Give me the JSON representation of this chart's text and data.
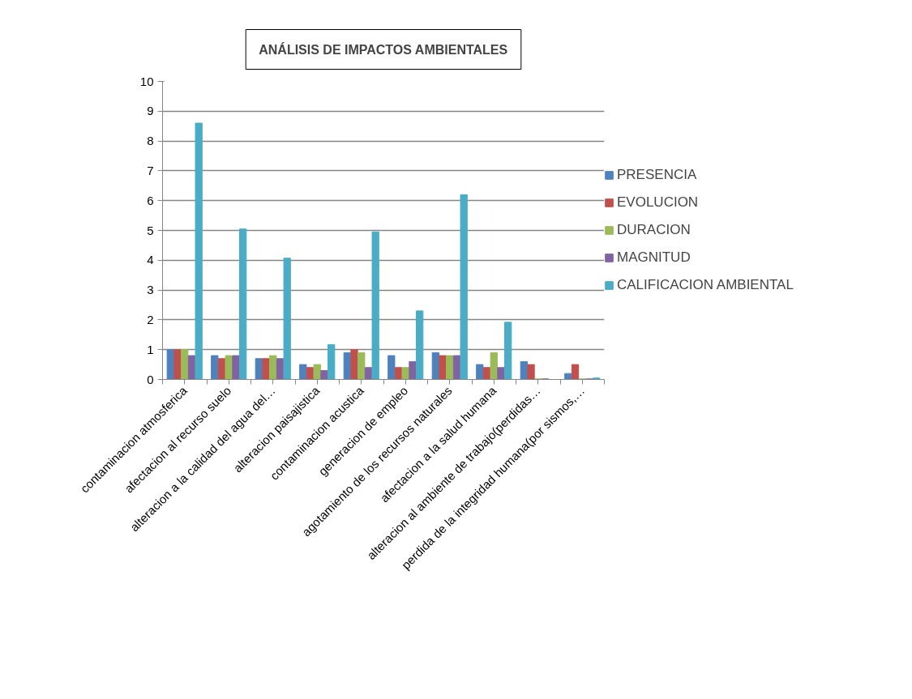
{
  "chart_data": {
    "type": "bar",
    "title": "ANÁLISIS DE IMPACTOS AMBIENTALES",
    "categories": [
      "contaminacion atmosferica",
      "afectacion al recurso suelo",
      "alteracion a la calidad del agua del…",
      "alteracion paisajistica",
      "contaminacion acustica",
      "generacion de empleo",
      "agotamiento de los recursos naturales",
      "afectacion a la salud humana",
      "alteracion al ambiente de trabajo(perdidas…",
      "perdida de la integridad humana(por sismos,…"
    ],
    "series": [
      {
        "name": "PRESENCIA",
        "color": "#4f81bd",
        "values": [
          1,
          0.8,
          0.7,
          0.5,
          0.9,
          0.8,
          0.9,
          0.5,
          0.6,
          0.2
        ]
      },
      {
        "name": "EVOLUCION",
        "color": "#c0504d",
        "values": [
          1,
          0.7,
          0.7,
          0.4,
          1,
          0.4,
          0.8,
          0.4,
          0.5,
          0.5
        ]
      },
      {
        "name": "DURACION",
        "color": "#9bbb59",
        "values": [
          1,
          0.8,
          0.8,
          0.5,
          0.9,
          0.4,
          0.8,
          0.9,
          0.02,
          0.02
        ]
      },
      {
        "name": "MAGNITUD",
        "color": "#8064a2",
        "values": [
          0.8,
          0.8,
          0.7,
          0.3,
          0.4,
          0.6,
          0.8,
          0.4,
          0.02,
          0.02
        ]
      },
      {
        "name": "CALIFICACION AMBIENTAL",
        "color": "#4bacc6",
        "values": [
          8.6,
          5.05,
          4.07,
          1.17,
          4.95,
          2.3,
          6.2,
          1.92,
          0,
          0.05
        ]
      }
    ],
    "ylim": [
      0,
      10
    ],
    "yticks": [
      0,
      1,
      2,
      3,
      4,
      5,
      6,
      7,
      8,
      9,
      10
    ],
    "grid": "y",
    "legend": "right"
  }
}
